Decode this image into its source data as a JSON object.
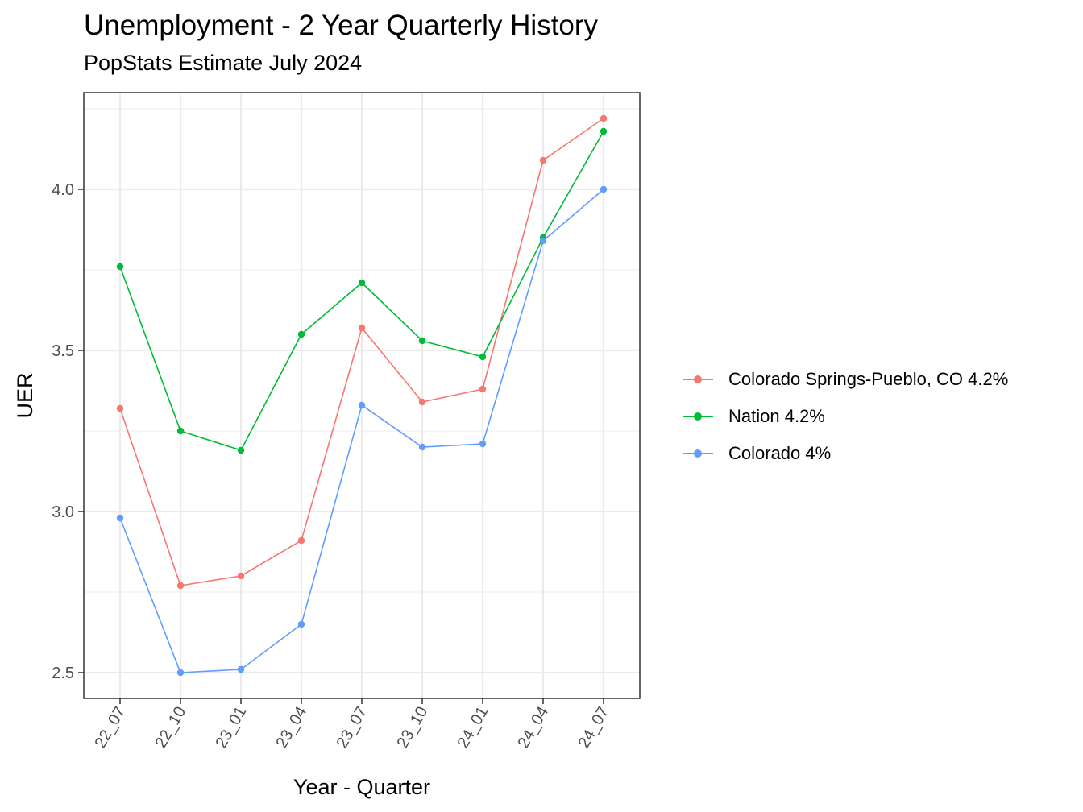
{
  "title": "Unemployment - 2 Year Quarterly History",
  "subtitle": "PopStats Estimate July 2024",
  "chart_data": {
    "type": "line",
    "title": "Unemployment - 2 Year Quarterly History",
    "subtitle": "PopStats Estimate July 2024",
    "xlabel": "Year - Quarter",
    "ylabel": "UER",
    "categories": [
      "22_07",
      "22_10",
      "23_01",
      "23_04",
      "23_07",
      "23_10",
      "24_01",
      "24_04",
      "24_07"
    ],
    "yticks": [
      "2.5",
      "3.0",
      "3.5",
      "4.0"
    ],
    "ylim": [
      2.42,
      4.3
    ],
    "grid": true,
    "legend_position": "right",
    "series": [
      {
        "name": "Colorado Springs-Pueblo, CO 4.2%",
        "color": "#F8766D",
        "values": [
          3.32,
          2.77,
          2.8,
          2.91,
          3.57,
          3.34,
          3.38,
          4.09,
          4.22
        ]
      },
      {
        "name": "Nation 4.2%",
        "color": "#00BA38",
        "values": [
          3.76,
          3.25,
          3.19,
          3.55,
          3.71,
          3.53,
          3.48,
          3.85,
          4.18
        ]
      },
      {
        "name": "Colorado 4%",
        "color": "#619CFF",
        "values": [
          2.98,
          2.5,
          2.51,
          2.65,
          3.33,
          3.2,
          3.21,
          3.84,
          4.0
        ]
      }
    ]
  }
}
